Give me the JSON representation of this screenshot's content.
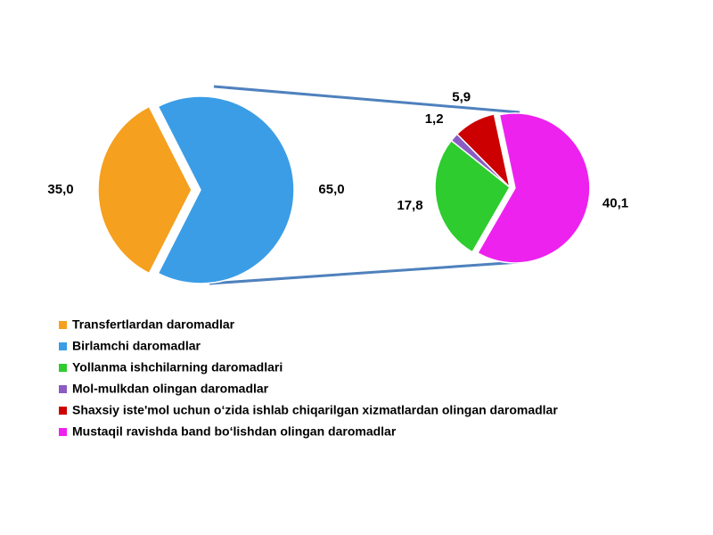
{
  "chart_data": [
    {
      "type": "pie",
      "categories": [
        "Transfertlardan daromadlar",
        "Birlamchi daromadlar"
      ],
      "values": [
        35.0,
        65.0
      ],
      "value_labels": [
        "35,0",
        "65,0"
      ],
      "colors": [
        "#f5a01e",
        "#3b9de6"
      ]
    },
    {
      "type": "pie",
      "categories": [
        "Yollanma ishchilarning daromadlari",
        "Mol-mulkdan olingan daromadlar",
        "Shaxsiy iste'mol uchun o‘zida ishlab chiqarilgan xizmatlardan olingan daromadlar",
        "Mustaqil ravishda band bo‘lishdan olingan daromadlar"
      ],
      "values": [
        17.8,
        1.2,
        5.9,
        40.1
      ],
      "value_labels": [
        "17,8",
        "1,2",
        "5,9",
        "40,1"
      ],
      "colors": [
        "#2ecc2e",
        "#8a5cc4",
        "#cc0000",
        "#ee22ee"
      ]
    }
  ]
}
